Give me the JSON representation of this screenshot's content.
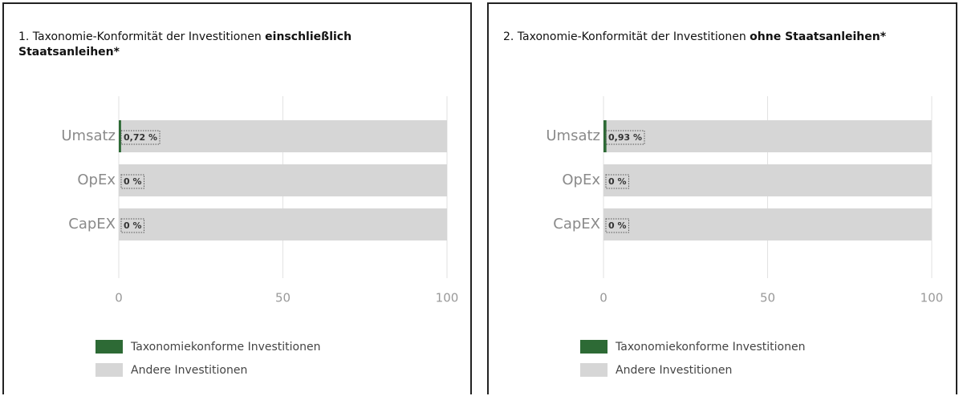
{
  "chart_data": [
    {
      "type": "stacked-barh",
      "title": "1. Taxonomie-Konformität der Investitionen",
      "title_emphasis": "einschließlich Staatsanleihen*",
      "categories": [
        "Umsatz",
        "OpEx",
        "CapEX"
      ],
      "series": [
        {
          "name": "Taxonomiekonforme Investitionen",
          "color": "#2d6a35",
          "values": [
            0.72,
            0,
            0
          ],
          "value_labels": [
            "0,72 %",
            "0 %",
            "0 %"
          ]
        },
        {
          "name": "Andere Investitionen",
          "color": "#d6d6d6",
          "values": [
            99.28,
            100,
            100
          ]
        }
      ],
      "xlim": [
        0,
        100
      ],
      "xticks": [
        0,
        50,
        100
      ],
      "grid": true
    },
    {
      "type": "stacked-barh",
      "title": "2. Taxonomie-Konformität der Investitionen",
      "title_emphasis": "ohne Staatsanleihen*",
      "categories": [
        "Umsatz",
        "OpEx",
        "CapEX"
      ],
      "series": [
        {
          "name": "Taxonomiekonforme Investitionen",
          "color": "#2d6a35",
          "values": [
            0.93,
            0,
            0
          ],
          "value_labels": [
            "0,93 %",
            "0 %",
            "0 %"
          ]
        },
        {
          "name": "Andere Investitionen",
          "color": "#d6d6d6",
          "values": [
            99.07,
            100,
            100
          ]
        }
      ],
      "xlim": [
        0,
        100
      ],
      "xticks": [
        0,
        50,
        100
      ],
      "grid": true
    }
  ]
}
